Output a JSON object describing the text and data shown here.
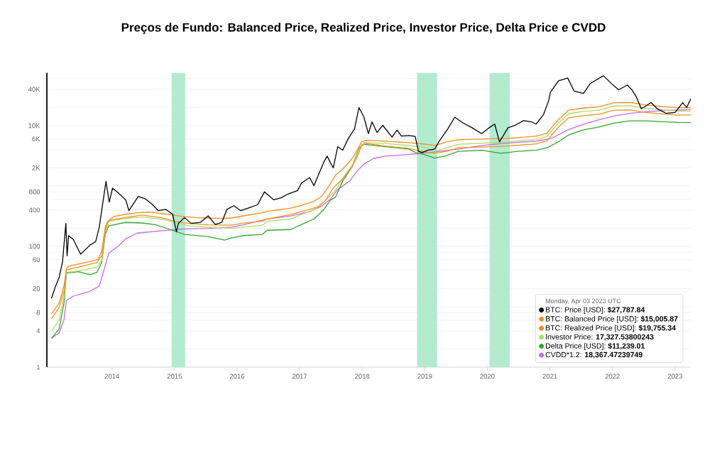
{
  "chart_data": {
    "type": "line",
    "title": "Preços de Fundo: Balanced Price, Realized Price, Investor Price, Delta Price e CVDD",
    "legend_title": "Monday, Apr 03 2023 UTC",
    "xlim": [
      "2012-12-17",
      "2023-04-03"
    ],
    "xticks": [
      "2014",
      "2015",
      "2016",
      "2017",
      "2018",
      "2019",
      "2020",
      "2021",
      "2022",
      "2023"
    ],
    "ylim": [
      1,
      75000
    ],
    "yticks": [
      1,
      {
        "value": 2,
        "label": null
      },
      4,
      {
        "value": 6,
        "label": null
      },
      8,
      {
        "value": 10,
        "label": null
      },
      20,
      {
        "value": 40,
        "label": null
      },
      60,
      {
        "value": 80,
        "label": null
      },
      100,
      {
        "value": 200,
        "label": null
      },
      400,
      {
        "value": 600,
        "label": null
      },
      800,
      {
        "value": 1000,
        "label": null
      },
      {
        "value": 2000,
        "label": "2K"
      },
      {
        "value": 4000,
        "label": null
      },
      {
        "value": 6000,
        "label": "6K"
      },
      {
        "value": 10000,
        "label": "10K"
      },
      {
        "value": 20000,
        "label": null
      },
      {
        "value": 40000,
        "label": "40K"
      },
      {
        "value": 60000,
        "label": null
      }
    ],
    "log": true,
    "grid": "y",
    "legend": "bottom right",
    "marker": "none",
    "line_style": "solid",
    "bands": [
      {
        "axis": "x",
        "from": "2014-12-15",
        "to": "2015-03-04",
        "color": "#b3ebcf"
      },
      {
        "axis": "x",
        "from": "2018-11-16",
        "to": "2019-03-14",
        "color": "#b3ebcf"
      },
      {
        "axis": "x",
        "from": "2020-01-14",
        "to": "2020-05-11",
        "color": "#b3ebcf"
      }
    ],
    "series": [
      {
        "name": "BTC: Price [USD]: **$27,787.84**",
        "color": "#000000",
        "x": [
          "2013-01-14",
          "2013-02-01",
          "2013-02-27",
          "2013-03-18",
          "2013-04-07",
          "2013-04-14",
          "2013-04-23",
          "2013-05-20",
          "2013-07-02",
          "2013-08-26",
          "2013-09-28",
          "2013-10-19",
          "2013-11-18",
          "2013-11-27",
          "2013-12-16",
          "2014-01-04",
          "2014-02-06",
          "2014-03-22",
          "2014-04-10",
          "2014-06-03",
          "2014-07-16",
          "2014-08-26",
          "2014-09-28",
          "2014-11-10",
          "2014-12-21",
          "2015-01-12",
          "2015-01-23",
          "2015-02-28",
          "2015-04-08",
          "2015-06-02",
          "2015-07-16",
          "2015-08-26",
          "2015-10-04",
          "2015-11-03",
          "2015-12-13",
          "2016-01-22",
          "2016-03-06",
          "2016-04-30",
          "2016-06-09",
          "2016-08-03",
          "2016-09-16",
          "2016-10-26",
          "2016-12-20",
          "2017-01-11",
          "2017-02-28",
          "2017-03-25",
          "2017-05-22",
          "2017-06-10",
          "2017-07-16",
          "2017-08-11",
          "2017-09-09",
          "2017-10-12",
          "2017-11-17",
          "2017-12-13",
          "2018-01-11",
          "2018-02-06",
          "2018-02-27",
          "2018-03-28",
          "2018-05-01",
          "2018-06-24",
          "2018-07-23",
          "2018-08-17",
          "2018-10-01",
          "2018-11-06",
          "2018-11-25",
          "2018-12-15",
          "2019-01-19",
          "2019-02-28",
          "2019-03-28",
          "2019-05-15",
          "2019-06-25",
          "2019-08-11",
          "2019-10-04",
          "2019-11-29",
          "2020-01-11",
          "2020-02-13",
          "2020-03-12",
          "2020-05-01",
          "2020-06-10",
          "2020-07-31",
          "2020-09-16",
          "2020-10-12",
          "2020-11-24",
          "2020-12-25",
          "2021-01-04",
          "2021-02-20",
          "2021-04-15",
          "2021-05-22",
          "2021-07-16",
          "2021-08-25",
          "2021-11-09",
          "2021-12-28",
          "2022-02-06",
          "2022-03-29",
          "2022-04-25",
          "2022-05-20",
          "2022-06-18",
          "2022-08-14",
          "2022-09-20",
          "2022-11-09",
          "2023-01-01",
          "2023-02-15",
          "2023-03-10",
          "2023-04-03"
        ],
        "values": [
          14,
          20,
          31,
          54,
          240,
          70,
          150,
          130,
          74,
          105,
          120,
          210,
          800,
          1190,
          540,
          920,
          770,
          590,
          390,
          670,
          610,
          490,
          390,
          410,
          340,
          173,
          240,
          300,
          240,
          250,
          320,
          230,
          250,
          410,
          470,
          390,
          430,
          490,
          800,
          590,
          640,
          740,
          840,
          1110,
          1380,
          1010,
          2490,
          3120,
          1990,
          4480,
          3910,
          6140,
          8810,
          19900,
          13800,
          7360,
          11500,
          7690,
          10100,
          6430,
          8430,
          6720,
          6840,
          6610,
          3740,
          3570,
          3910,
          4090,
          5610,
          8810,
          13800,
          11100,
          9220,
          7360,
          9220,
          10600,
          5360,
          9220,
          10100,
          12100,
          11500,
          10600,
          15100,
          26000,
          35700,
          55000,
          61400,
          37400,
          34000,
          50000,
          67100,
          49100,
          39100,
          47000,
          39000,
          30000,
          19000,
          24000,
          19000,
          16000,
          16500,
          24000,
          20000,
          27787.84
        ]
      },
      {
        "name": "BTC: Balanced Price [USD]: **$15,005.87**",
        "color": "#f5921e",
        "x": [
          "2013-01-14",
          "2013-02-27",
          "2013-03-27",
          "2013-04-10",
          "2013-06-18",
          "2013-10-05",
          "2013-11-02",
          "2013-11-23",
          "2013-12-13",
          "2014-03-20",
          "2014-06-24",
          "2014-10-13",
          "2015-01-03",
          "2015-03-27",
          "2015-07-15",
          "2015-11-30",
          "2016-02-06",
          "2016-05-28",
          "2016-06-25",
          "2016-11-09",
          "2017-02-27",
          "2017-04-24",
          "2017-06-04",
          "2017-07-15",
          "2017-09-09",
          "2017-11-03",
          "2017-12-07",
          "2017-12-28",
          "2018-01-24",
          "2018-05-15",
          "2018-09-29",
          "2018-11-09",
          "2019-02-28",
          "2019-05-08",
          "2019-07-16",
          "2019-12-01",
          "2020-04-17",
          "2020-10-14",
          "2020-12-15",
          "2021-01-20",
          "2021-02-25",
          "2021-04-20",
          "2021-07-15",
          "2021-10-15",
          "2022-01-10",
          "2022-04-15",
          "2022-07-15",
          "2022-10-15",
          "2023-01-15",
          "2023-04-03"
        ],
        "values": [
          6.4,
          9.7,
          18,
          41,
          45,
          54,
          70,
          190,
          270,
          300,
          330,
          300,
          260,
          240,
          227,
          224,
          243,
          260,
          285,
          336,
          410,
          456,
          590,
          920,
          1320,
          2080,
          3270,
          4690,
          5040,
          4600,
          4200,
          3900,
          3480,
          3740,
          4290,
          4400,
          4560,
          4990,
          5600,
          7500,
          9700,
          13500,
          14600,
          15400,
          18000,
          18200,
          16500,
          15600,
          14900,
          15005.87
        ]
      },
      {
        "name": "BTC: Realized Price [USD]: **$19,755.34**",
        "color": "#fb8a1c",
        "x": [
          "2013-01-14",
          "2013-02-27",
          "2013-03-27",
          "2013-04-10",
          "2013-04-24",
          "2013-06-18",
          "2013-08-25",
          "2013-10-12",
          "2013-11-02",
          "2013-11-23",
          "2013-12-07",
          "2014-01-10",
          "2014-03-20",
          "2014-05-28",
          "2014-08-04",
          "2014-10-13",
          "2014-12-21",
          "2015-02-27",
          "2015-05-08",
          "2015-07-15",
          "2015-09-22",
          "2015-11-30",
          "2016-02-06",
          "2016-05-28",
          "2016-06-25",
          "2016-11-09",
          "2017-01-03",
          "2017-03-27",
          "2017-05-08",
          "2017-06-18",
          "2017-07-29",
          "2017-09-09",
          "2017-11-03",
          "2017-12-07",
          "2017-12-28",
          "2018-01-24",
          "2018-05-15",
          "2018-09-29",
          "2019-01-04",
          "2019-02-28",
          "2019-05-08",
          "2019-07-16",
          "2019-12-01",
          "2020-04-17",
          "2020-08-04",
          "2020-10-14",
          "2020-12-15",
          "2021-01-20",
          "2021-02-25",
          "2021-04-20",
          "2021-07-15",
          "2021-10-15",
          "2022-01-10",
          "2022-04-15",
          "2022-07-15",
          "2022-10-15",
          "2023-01-15",
          "2023-04-03"
        ],
        "values": [
          7.7,
          11.5,
          22,
          43,
          47,
          51,
          56,
          61,
          84,
          210,
          260,
          310,
          340,
          360,
          370,
          350,
          330,
          310,
          300,
          295,
          290,
          295,
          320,
          360,
          380,
          430,
          470,
          560,
          670,
          970,
          1510,
          1900,
          2850,
          4090,
          5360,
          5710,
          5510,
          5220,
          4910,
          4690,
          5360,
          5870,
          5980,
          6140,
          6430,
          6720,
          7500,
          10000,
          13000,
          18000,
          19500,
          20500,
          24000,
          24200,
          22000,
          20800,
          19800,
          19755.34
        ]
      },
      {
        "name": "Investor Price: **17,327.53800243**",
        "color": "#a9df62",
        "x": [
          "2013-01-14",
          "2013-02-27",
          "2013-03-27",
          "2013-04-10",
          "2013-06-18",
          "2013-10-05",
          "2013-11-02",
          "2013-11-23",
          "2013-12-13",
          "2014-03-20",
          "2014-06-24",
          "2014-10-13",
          "2015-01-03",
          "2015-03-27",
          "2015-07-15",
          "2015-11-30",
          "2016-02-06",
          "2016-05-28",
          "2016-06-25",
          "2016-11-09",
          "2017-03-27",
          "2017-06-04",
          "2017-07-29",
          "2017-09-23",
          "2017-11-16",
          "2017-12-14",
          "2018-01-10",
          "2018-05-15",
          "2018-09-29",
          "2019-01-04",
          "2019-02-28",
          "2019-05-08",
          "2019-07-16",
          "2019-12-01",
          "2020-04-17",
          "2020-10-14",
          "2020-12-15",
          "2021-01-20",
          "2021-02-25",
          "2021-04-20",
          "2021-07-15",
          "2021-10-15",
          "2022-01-10",
          "2022-04-15",
          "2022-07-15",
          "2022-10-15",
          "2023-01-15",
          "2023-04-03"
        ],
        "values": [
          3.9,
          6.1,
          15,
          37,
          39,
          45,
          59,
          173,
          260,
          293,
          306,
          285,
          249,
          218,
          208,
          199,
          208,
          224,
          260,
          285,
          409,
          587,
          843,
          1510,
          2490,
          4090,
          5220,
          5040,
          4690,
          4360,
          3740,
          4290,
          4910,
          5120,
          5360,
          5870,
          6600,
          8800,
          11400,
          15800,
          17200,
          18000,
          21000,
          21300,
          19400,
          18300,
          17400,
          17327.53800243
        ]
      },
      {
        "name": "Delta Price [USD]: **$11,239.01**",
        "color": "#33a532",
        "x": [
          "2013-01-14",
          "2013-02-27",
          "2013-03-27",
          "2013-04-10",
          "2013-06-18",
          "2013-08-25",
          "2013-10-05",
          "2013-11-02",
          "2013-11-23",
          "2013-12-13",
          "2014-03-20",
          "2014-06-24",
          "2014-09-15",
          "2014-12-07",
          "2015-02-27",
          "2015-07-15",
          "2015-10-20",
          "2015-11-30",
          "2016-02-06",
          "2016-05-28",
          "2016-06-25",
          "2016-11-09",
          "2017-01-17",
          "2017-03-27",
          "2017-05-22",
          "2017-07-01",
          "2017-07-29",
          "2017-09-09",
          "2017-11-03",
          "2017-12-14",
          "2018-01-10",
          "2018-05-15",
          "2018-09-29",
          "2018-11-09",
          "2019-01-04",
          "2019-02-28",
          "2019-05-08",
          "2019-07-16",
          "2019-12-01",
          "2020-03-21",
          "2020-06-25",
          "2020-10-14",
          "2020-12-15",
          "2021-02-25",
          "2021-04-20",
          "2021-07-15",
          "2021-10-15",
          "2022-01-10",
          "2022-04-15",
          "2022-07-15",
          "2022-10-15",
          "2023-01-15",
          "2023-04-03"
        ],
        "values": [
          3.0,
          4.3,
          11.5,
          36,
          38,
          34,
          37,
          54,
          158,
          218,
          249,
          244,
          227,
          190,
          158,
          145,
          127,
          138,
          151,
          158,
          185,
          190,
          233,
          285,
          409,
          587,
          653,
          1210,
          2080,
          4290,
          4910,
          4480,
          4090,
          3570,
          3270,
          2900,
          3180,
          3740,
          3910,
          3480,
          3740,
          3910,
          4300,
          5500,
          7000,
          8500,
          9500,
          11000,
          12000,
          12000,
          11600,
          11300,
          11239.01
        ]
      },
      {
        "name": "CVDD*1.2: **18,367.47239749**",
        "color": "#c26be8",
        "x": [
          "2013-01-14",
          "2013-02-27",
          "2013-03-27",
          "2013-04-10",
          "2013-05-21",
          "2013-08-25",
          "2013-10-19",
          "2013-11-16",
          "2013-12-13",
          "2014-02-07",
          "2014-03-20",
          "2014-05-28",
          "2014-10-13",
          "2015-02-27",
          "2015-07-15",
          "2015-11-30",
          "2016-02-06",
          "2016-06-25",
          "2016-11-09",
          "2017-02-27",
          "2017-05-08",
          "2017-07-01",
          "2017-08-12",
          "2017-10-20",
          "2017-11-30",
          "2018-01-10",
          "2018-03-07",
          "2018-05-15",
          "2018-09-29",
          "2018-11-09",
          "2019-03-28",
          "2019-07-16",
          "2019-12-01",
          "2020-04-17",
          "2020-10-14",
          "2021-01-15",
          "2021-04-15",
          "2021-07-15",
          "2021-10-15",
          "2022-01-15",
          "2022-04-15",
          "2022-07-15",
          "2022-10-15",
          "2023-01-15",
          "2023-04-03"
        ],
        "values": [
          3.0,
          3.7,
          6.1,
          12.7,
          15,
          18,
          22,
          41,
          77,
          101,
          132,
          166,
          181,
          195,
          199,
          208,
          227,
          285,
          318,
          374,
          461,
          614,
          881,
          1210,
          1730,
          2300,
          2850,
          3120,
          3320,
          3400,
          3740,
          4090,
          4690,
          5120,
          5510,
          6200,
          8500,
          10500,
          12500,
          14500,
          16000,
          17000,
          17700,
          18100,
          18367.47239749
        ]
      }
    ]
  }
}
